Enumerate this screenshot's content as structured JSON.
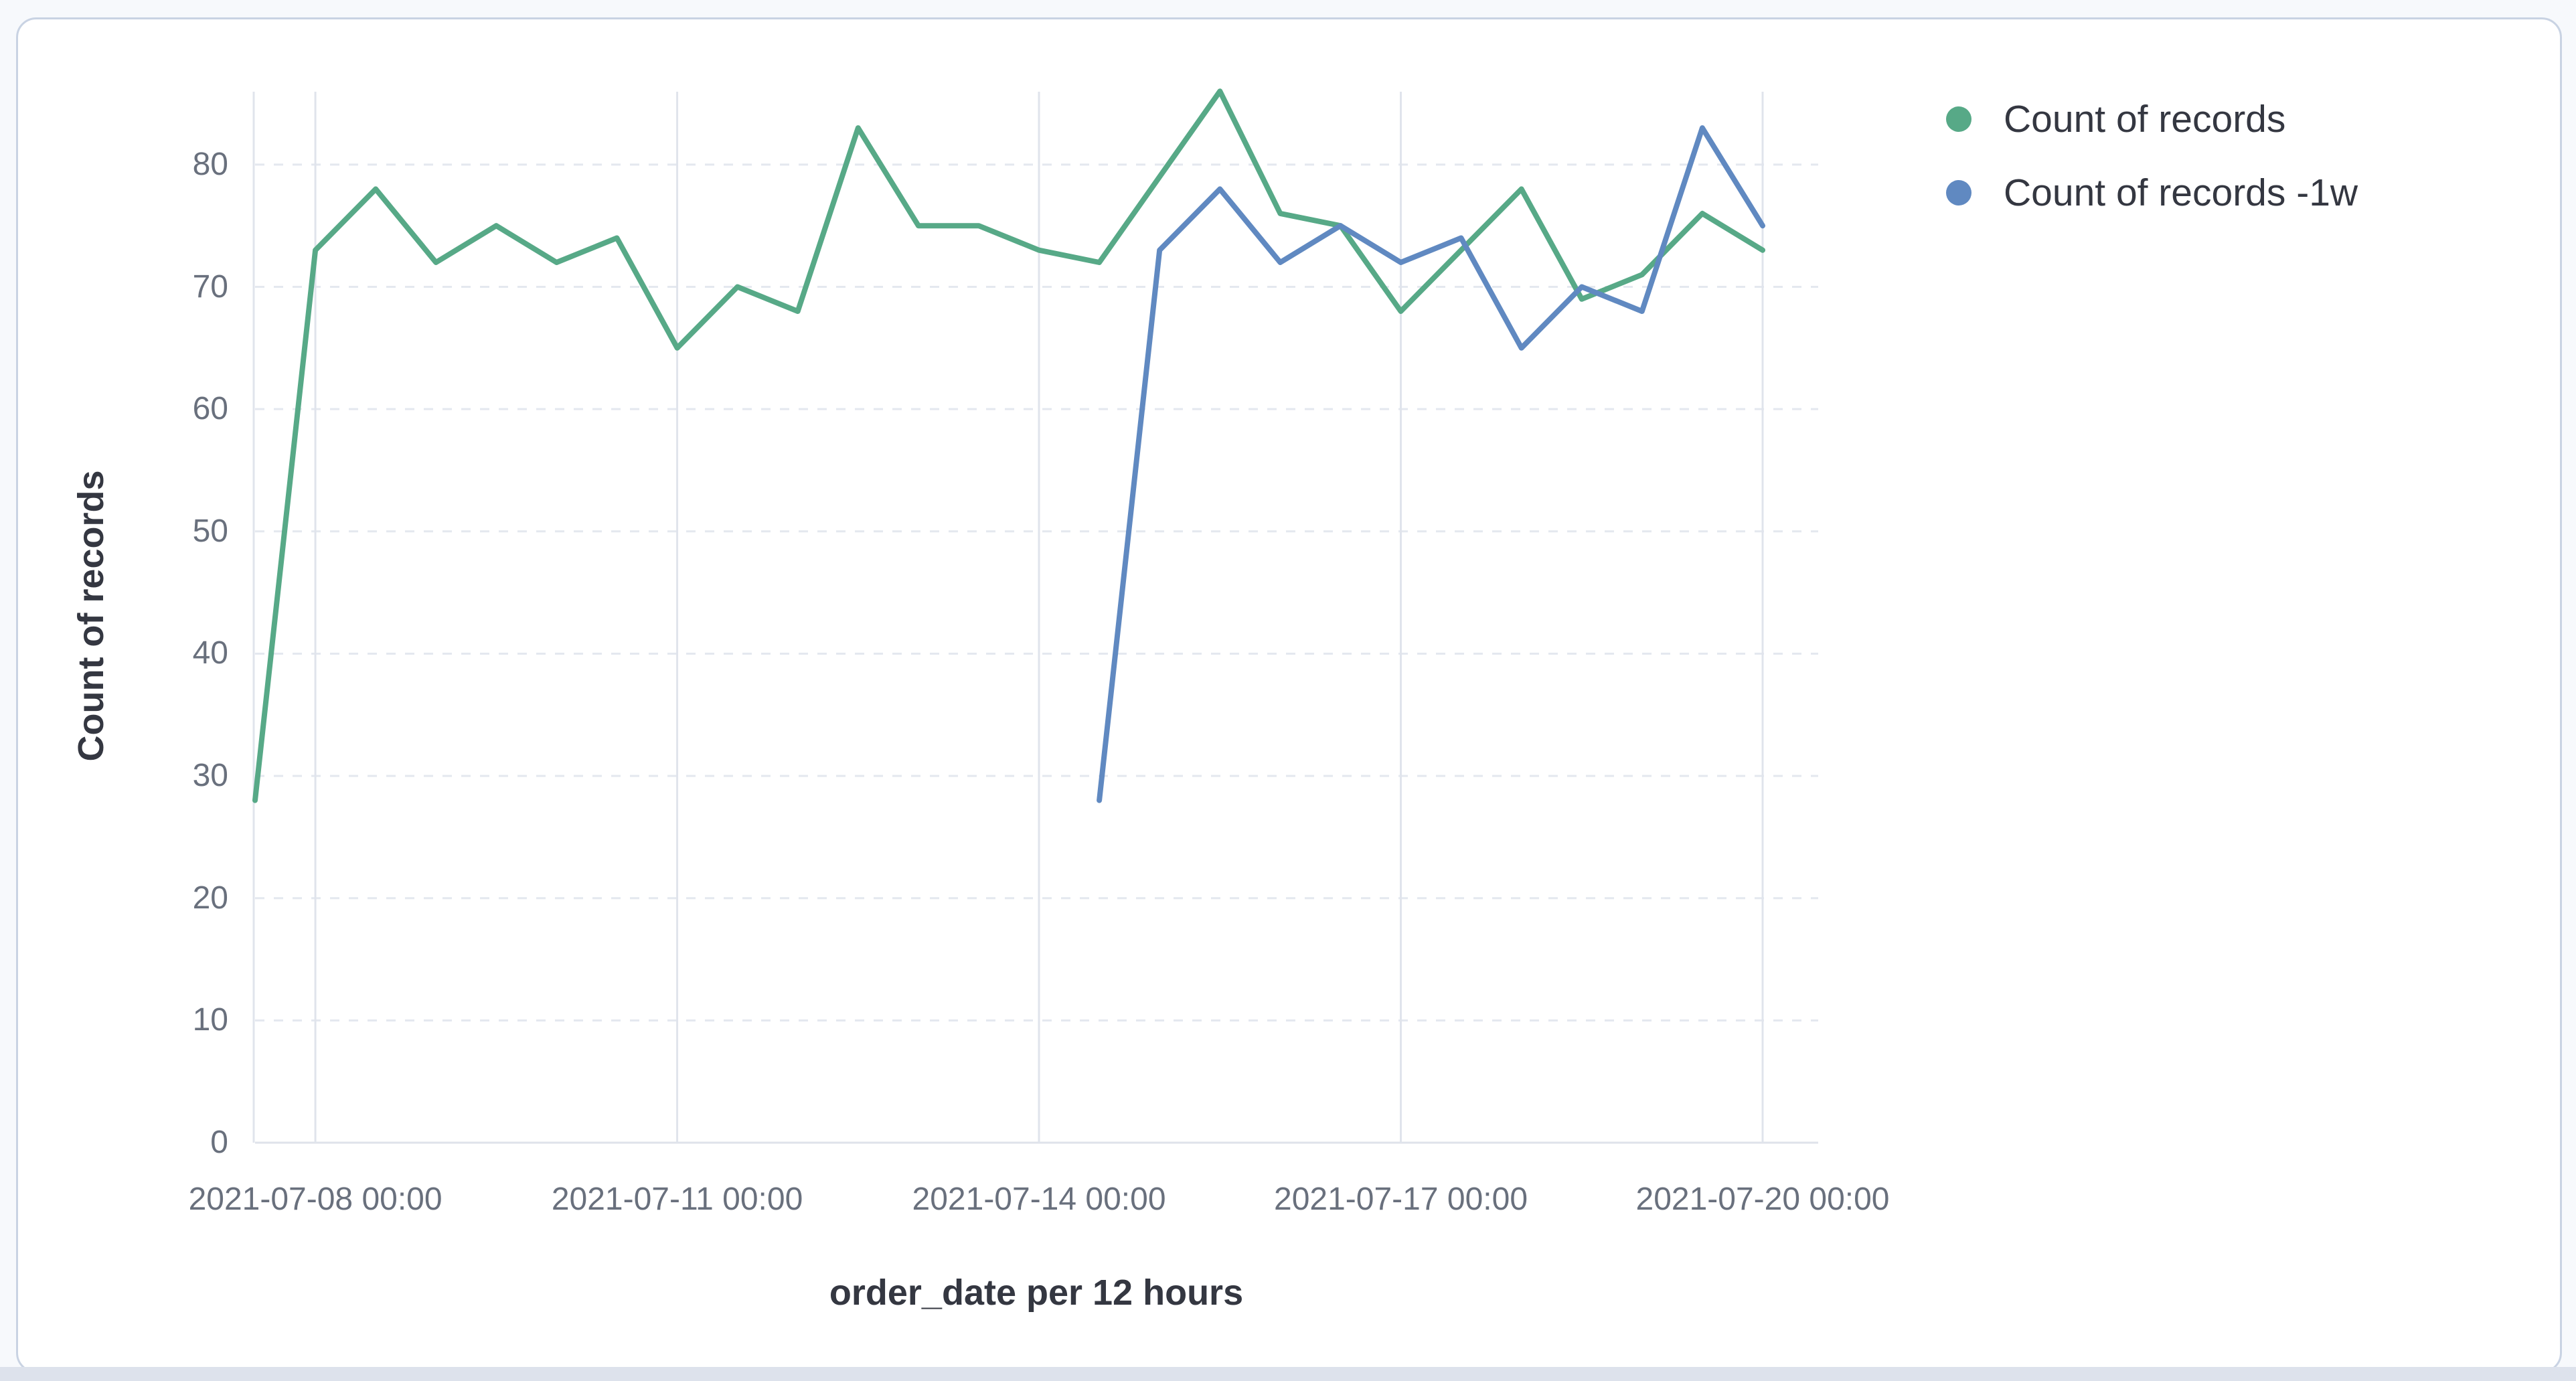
{
  "legend": {
    "items": [
      {
        "label": "Count of records",
        "color": "#57a987"
      },
      {
        "label": "Count of records -1w",
        "color": "#6089c1"
      }
    ]
  },
  "chart_data": {
    "type": "line",
    "title": "",
    "xlabel": "order_date per 12 hours",
    "ylabel": "Count of records",
    "x": [
      "2021-07-07 12:00",
      "2021-07-08 00:00",
      "2021-07-08 12:00",
      "2021-07-09 00:00",
      "2021-07-09 12:00",
      "2021-07-10 00:00",
      "2021-07-10 12:00",
      "2021-07-11 00:00",
      "2021-07-11 12:00",
      "2021-07-12 00:00",
      "2021-07-12 12:00",
      "2021-07-13 00:00",
      "2021-07-13 12:00",
      "2021-07-14 00:00",
      "2021-07-14 12:00",
      "2021-07-15 00:00",
      "2021-07-15 12:00",
      "2021-07-16 00:00",
      "2021-07-16 12:00",
      "2021-07-17 00:00",
      "2021-07-17 12:00",
      "2021-07-18 00:00",
      "2021-07-18 12:00",
      "2021-07-19 00:00",
      "2021-07-19 12:00",
      "2021-07-20 00:00"
    ],
    "series": [
      {
        "name": "Count of records",
        "color": "#57a987",
        "values": [
          28,
          73,
          78,
          72,
          75,
          72,
          74,
          65,
          70,
          68,
          83,
          75,
          75,
          73,
          72,
          79,
          86,
          76,
          75,
          68,
          73,
          78,
          69,
          71,
          76,
          73
        ]
      },
      {
        "name": "Count of records -1w",
        "color": "#6089c1",
        "values": [
          null,
          null,
          null,
          null,
          null,
          null,
          null,
          null,
          null,
          null,
          null,
          null,
          null,
          null,
          28,
          73,
          78,
          72,
          75,
          72,
          74,
          65,
          70,
          68,
          83,
          75
        ]
      }
    ],
    "y_ticks": [
      0,
      10,
      20,
      30,
      40,
      50,
      60,
      70,
      80
    ],
    "x_ticks": [
      {
        "label": "2021-07-08 00:00",
        "index": 1
      },
      {
        "label": "2021-07-11 00:00",
        "index": 7
      },
      {
        "label": "2021-07-14 00:00",
        "index": 13
      },
      {
        "label": "2021-07-17 00:00",
        "index": 19
      },
      {
        "label": "2021-07-20 00:00",
        "index": 25
      }
    ],
    "ylim": [
      0,
      86
    ],
    "grid": {
      "horizontal": "dashed",
      "vertical": "solid"
    },
    "legend_position": "right"
  },
  "colors": {
    "grid_dashed": "#e4e8ef",
    "grid_solid": "#e0e4ec",
    "axis_line": "#dfe3ea",
    "tick_text": "#69707d",
    "title_text": "#343741",
    "card_border": "#c9d3e3",
    "page_bg": "#f7f9fc",
    "bottom_bar": "#dde2ec"
  }
}
